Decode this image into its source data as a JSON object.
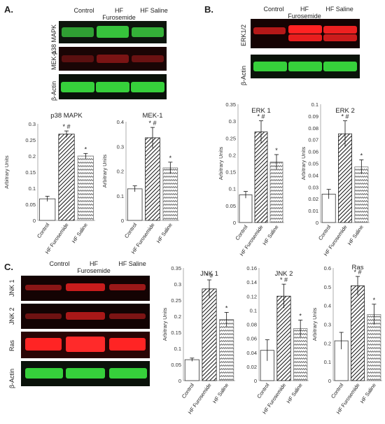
{
  "colors": {
    "green_band": "#34d63a",
    "red_band": "#ff2626",
    "dark_red": "#a01a1a",
    "blot_bg": "#0b0b0b"
  },
  "panel_A": {
    "letter": "A.",
    "lanes": [
      "Control",
      "HF Furosemide",
      "HF Saline"
    ],
    "rows": [
      "p38 MAPK",
      "MEK-1",
      "β-Actin"
    ]
  },
  "panel_B": {
    "letter": "B.",
    "lanes": [
      "Control",
      "HF Furosemide",
      "HF Saline"
    ],
    "rows": [
      "ERK1/2",
      "β-Actin"
    ]
  },
  "panel_C": {
    "letter": "C.",
    "lanes": [
      "Control",
      "HF Furosemide",
      "HF Saline"
    ],
    "rows": [
      "JNK 1",
      "JNK 2",
      "Ras",
      "β-Actin"
    ]
  },
  "chart_data": [
    {
      "id": "p38",
      "type": "bar",
      "title": "p38 MAPK",
      "ylabel": "Arbitrary Units",
      "ylim": [
        0,
        0.3
      ],
      "ticks": [
        "0",
        "0.05",
        "0.1",
        "0.15",
        "0.2",
        "0.25",
        "0.3"
      ],
      "categories": [
        "Control",
        "HF Furosemide",
        "HF Saline"
      ],
      "values": [
        0.067,
        0.268,
        0.2
      ],
      "errors": [
        0.008,
        0.01,
        0.008
      ],
      "annotations": [
        "",
        "* #",
        "*"
      ]
    },
    {
      "id": "mek",
      "type": "bar",
      "title": "MEK-1",
      "ylabel": "Arbitrary Units",
      "ylim": [
        0,
        0.4
      ],
      "ticks": [
        "0",
        "0.1",
        "0.2",
        "0.3",
        "0.4"
      ],
      "categories": [
        "Control",
        "HF Furosemide",
        "HF Saline"
      ],
      "values": [
        0.128,
        0.335,
        0.213
      ],
      "errors": [
        0.012,
        0.042,
        0.023
      ],
      "annotations": [
        "",
        "* #",
        "*"
      ]
    },
    {
      "id": "erk1",
      "type": "bar",
      "title": "ERK 1",
      "ylabel": "Arbitrary Units",
      "ylim": [
        0,
        0.35
      ],
      "ticks": [
        "0",
        "0.05",
        "0.1",
        "0.15",
        "0.2",
        "0.25",
        "0.3",
        "0.35"
      ],
      "categories": [
        "Control",
        "HF Furosemide",
        "HF Saline"
      ],
      "values": [
        0.082,
        0.268,
        0.179
      ],
      "errors": [
        0.01,
        0.033,
        0.022
      ],
      "annotations": [
        "",
        "* #",
        "*"
      ]
    },
    {
      "id": "erk2",
      "type": "bar",
      "title": "ERK 2",
      "ylabel": "Arbitrary Units",
      "ylim": [
        0,
        0.1
      ],
      "ticks": [
        "0",
        "0.01",
        "0.02",
        "0.03",
        "0.04",
        "0.05",
        "0.06",
        "0.07",
        "0.08",
        "0.09",
        "0.1"
      ],
      "categories": [
        "Control",
        "HF Furosemide",
        "HF Saline"
      ],
      "values": [
        0.024,
        0.075,
        0.047
      ],
      "errors": [
        0.004,
        0.011,
        0.006
      ],
      "annotations": [
        "",
        "* #",
        "*"
      ]
    },
    {
      "id": "jnk1",
      "type": "bar",
      "title": "JNK 1",
      "ylabel": "Arbitrary Units",
      "ylim": [
        0,
        0.35
      ],
      "ticks": [
        "0",
        "0.05",
        "0.1",
        "0.15",
        "0.2",
        "0.25",
        "0.3",
        "0.35"
      ],
      "categories": [
        "Control",
        "HF Furosemide",
        "HF Saline"
      ],
      "values": [
        0.065,
        0.285,
        0.19
      ],
      "errors": [
        0.005,
        0.028,
        0.022
      ],
      "annotations": [
        "",
        "* #",
        "*"
      ]
    },
    {
      "id": "jnk2",
      "type": "bar",
      "title": "JNK 2",
      "ylabel": "",
      "ylim": [
        0,
        0.16
      ],
      "ticks": [
        "0",
        "0.02",
        "0.04",
        "0.06",
        "0.08",
        "0.1",
        "0.12",
        "0.14",
        "0.16"
      ],
      "categories": [
        "Control",
        "HF Furosemide",
        "HF Saline"
      ],
      "values": [
        0.043,
        0.12,
        0.074
      ],
      "errors": [
        0.015,
        0.017,
        0.012
      ],
      "annotations": [
        "",
        "* #",
        "*"
      ]
    },
    {
      "id": "ras",
      "type": "bar",
      "title": "Ras",
      "ylabel": "Arbitrary Units",
      "ylim": [
        0,
        0.6
      ],
      "ticks": [
        "0",
        "0.1",
        "0.2",
        "0.3",
        "0.4",
        "0.5",
        "0.6"
      ],
      "categories": [
        "Control",
        "HF Furosemide",
        "HF Saline"
      ],
      "values": [
        0.212,
        0.505,
        0.352
      ],
      "errors": [
        0.045,
        0.05,
        0.055
      ],
      "annotations": [
        "",
        "* #",
        "*"
      ]
    }
  ]
}
